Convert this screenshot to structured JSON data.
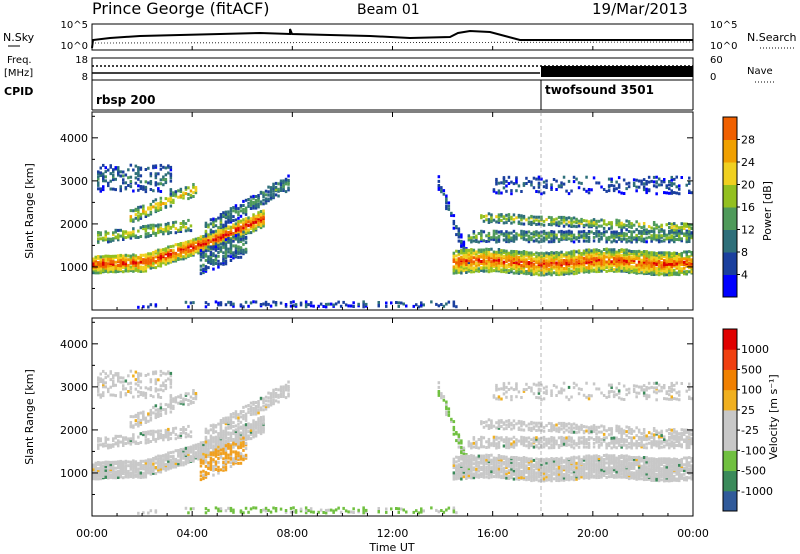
{
  "header": {
    "station": "Prince George (fitACF)",
    "beam": "Beam 01",
    "date": "19/Mar/2013"
  },
  "noise_panel": {
    "left_label": "N.Sky",
    "right_label": "N.Search",
    "left_ticks": [
      "10^5",
      "10^0"
    ],
    "right_ticks": [
      "10^5",
      "10^0"
    ]
  },
  "freq_panel": {
    "left_label_1": "Freq.",
    "left_label_2": "[MHz]",
    "right_label": "Nave",
    "left_ticks": [
      "18",
      "8"
    ],
    "right_ticks": [
      "60",
      "0"
    ]
  },
  "cpid_panel": {
    "label": "CPID",
    "programs": [
      {
        "name": "rbsp 200",
        "start_hour": 0
      },
      {
        "name": "twofsound 3501",
        "start_hour": 18
      }
    ]
  },
  "colors": {
    "power_scale": [
      "#0000ff",
      "#1a3f9e",
      "#2e6f7a",
      "#4f9a5a",
      "#93c020",
      "#f0d020",
      "#f0a000",
      "#f06000",
      "#e00000"
    ],
    "velocity_scale": [
      "#2020c0",
      "#305a9a",
      "#3a8a5a",
      "#70c040",
      "#c8c8c8",
      "#c8c8c8",
      "#f0b020",
      "#f08000",
      "#f04010",
      "#e00000"
    ],
    "gray": "#c8c8c8"
  },
  "chart_data": [
    {
      "type": "heatmap",
      "name": "power",
      "ylabel": "Slant Range [km]",
      "yticks": [
        "1000",
        "2000",
        "3000",
        "4000"
      ],
      "ylim": [
        0,
        4600
      ],
      "colorbar_label": "Power [dB]",
      "colorbar_ticks": [
        "4",
        "8",
        "12",
        "16",
        "20",
        "24",
        "28"
      ],
      "colorbar_range": [
        0,
        32
      ]
    },
    {
      "type": "heatmap",
      "name": "velocity",
      "ylabel": "Slant Range [km]",
      "yticks": [
        "1000",
        "2000",
        "3000",
        "4000"
      ],
      "ylim": [
        0,
        4600
      ],
      "colorbar_label": "Velocity [m s⁻¹]",
      "colorbar_ticks": [
        "1000",
        "500",
        "100",
        "25",
        "-25",
        "-100",
        "-500",
        "-1000"
      ]
    }
  ],
  "time_axis": {
    "xlabel": "Time UT",
    "ticks": [
      "00:00",
      "04:00",
      "08:00",
      "12:00",
      "16:00",
      "20:00",
      "00:00"
    ],
    "xlim_hours": [
      0,
      24
    ]
  }
}
